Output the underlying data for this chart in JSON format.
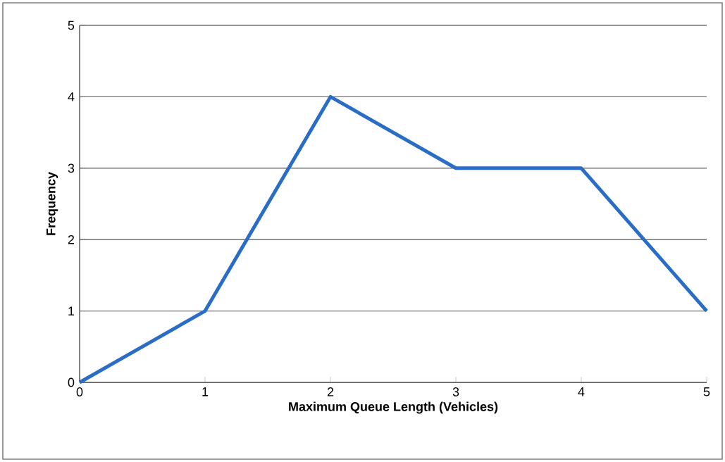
{
  "chart_data": {
    "type": "line",
    "xlabel": "Maximum Queue Length (Vehicles)",
    "ylabel": "Frequency",
    "x": [
      0,
      1,
      2,
      3,
      4,
      5
    ],
    "series": [
      {
        "color": "#2a6dc6",
        "values": [
          0,
          1,
          4,
          3,
          3,
          1
        ]
      }
    ],
    "xlim": [
      0,
      5
    ],
    "ylim": [
      0,
      5
    ],
    "xticks": [
      0,
      1,
      2,
      3,
      4,
      5
    ],
    "yticks": [
      0,
      1,
      2,
      3,
      4,
      5
    ],
    "grid": "y",
    "marker": "none",
    "line_style": "solid"
  }
}
